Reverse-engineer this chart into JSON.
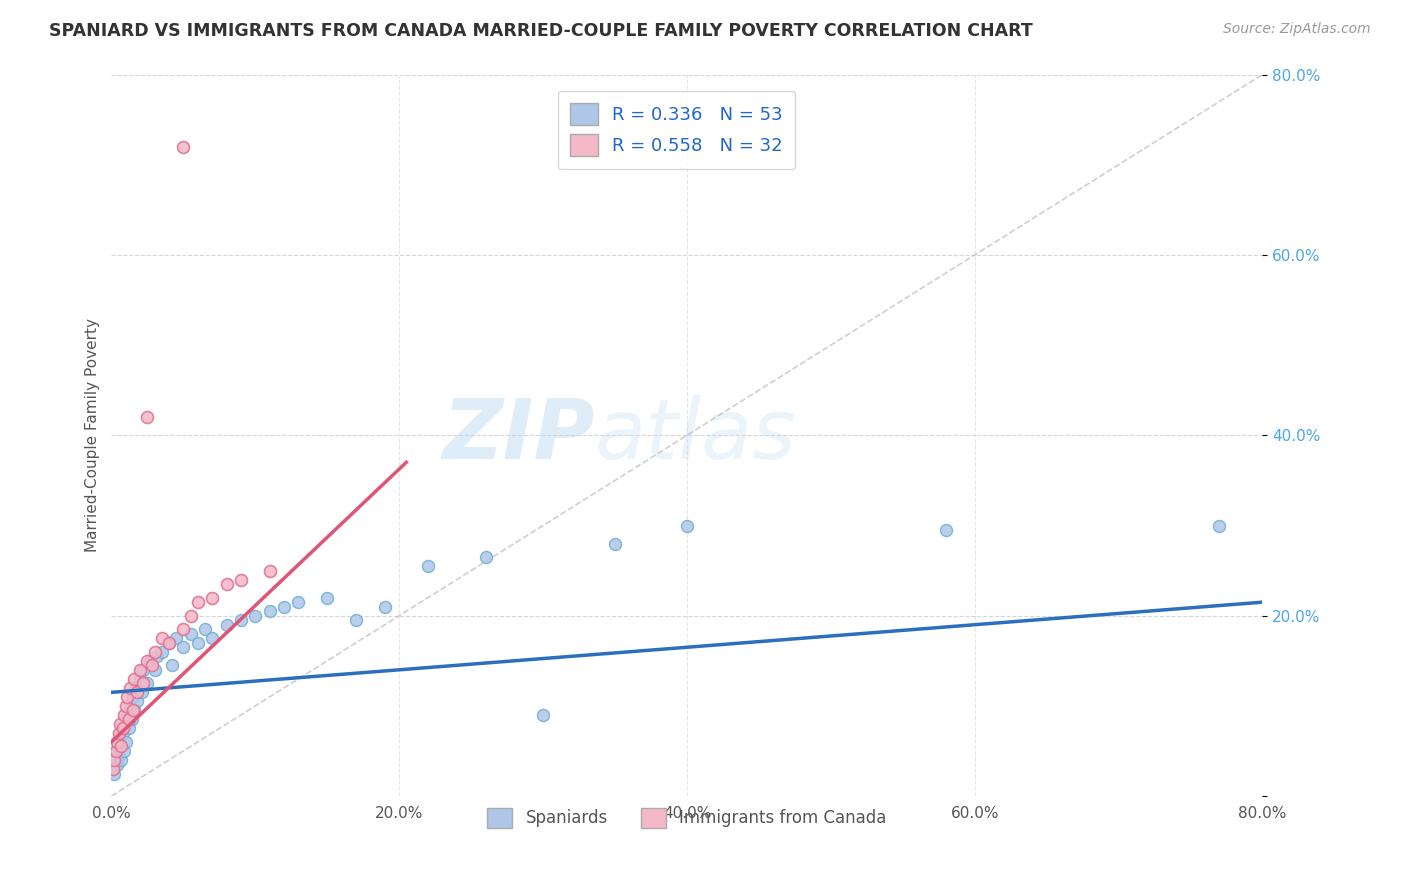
{
  "title": "SPANIARD VS IMMIGRANTS FROM CANADA MARRIED-COUPLE FAMILY POVERTY CORRELATION CHART",
  "source": "Source: ZipAtlas.com",
  "ylabel": "Married-Couple Family Poverty",
  "xlim": [
    0.0,
    0.8
  ],
  "ylim": [
    0.0,
    0.8
  ],
  "xtick_values": [
    0.0,
    0.2,
    0.4,
    0.6,
    0.8
  ],
  "ytick_values": [
    0.0,
    0.2,
    0.4,
    0.6,
    0.8
  ],
  "xtick_labels": [
    "0.0%",
    "20.0%",
    "40.0%",
    "60.0%",
    "80.0%"
  ],
  "ytick_labels": [
    "",
    "20.0%",
    "40.0%",
    "60.0%",
    "80.0%"
  ],
  "legend_label1": "Spaniards",
  "legend_label2": "Immigrants from Canada",
  "R1": "0.336",
  "N1": "53",
  "R2": "0.558",
  "N2": "32",
  "color1": "#aec6e8",
  "color2": "#f4b8c8",
  "line_color1": "#2c6fbe",
  "line_color2": "#e05575",
  "scatter_edge1": "#6baed6",
  "scatter_edge2": "#e07090",
  "background_color": "#ffffff",
  "watermark_zip": "ZIP",
  "watermark_atlas": "atlas",
  "grid_color": "#cccccc",
  "tick_color": "#4da6e8",
  "line1_x0": 0.0,
  "line1_y0": 0.115,
  "line1_x1": 0.8,
  "line1_y1": 0.215,
  "line2_x0": 0.0,
  "line2_y0": 0.06,
  "line2_x1": 0.195,
  "line2_y1": 0.355
}
